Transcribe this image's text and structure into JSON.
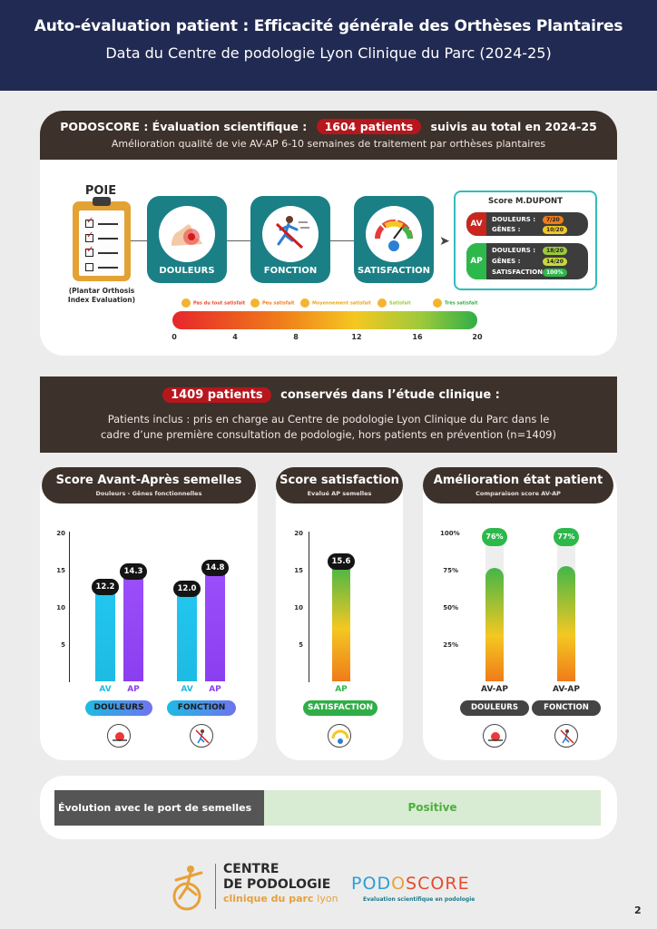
{
  "header": {
    "title": "Auto-évaluation patient : Efficacité générale des Orthèses Plantaires",
    "subtitle": "Data du Centre de podologie Lyon Clinique du Parc (2024-25)"
  },
  "section1": {
    "prefix": "PODOSCORE : Évaluation scientifique :",
    "patients_pill": "1604 patients",
    "suffix": "suivis au total en 2024-25",
    "line2": "Amélioration qualité de vie AV-AP 6-10 semaines de traitement par orthèses plantaires",
    "poie_title": "POIE",
    "poie_sub": "(Plantar Orthosis Index Evaluation)",
    "tiles": [
      "DOULEURS",
      "FONCTION",
      "SATISFACTION"
    ],
    "score_box": {
      "title": "Score M.DUPONT",
      "av": {
        "tag": "AV",
        "douleurs_label": "DOULEURS :",
        "douleurs_val": "7/20",
        "genes_label": "GÊNES :",
        "genes_val": "10/20"
      },
      "ap": {
        "tag": "AP",
        "douleurs_label": "DOULEURS :",
        "douleurs_val": "18/20",
        "genes_label": "GÊNES :",
        "genes_val": "14/20",
        "satisfaction_label": "SATISFACTION :",
        "satisfaction_val": "100%"
      }
    },
    "satisfaction_levels": [
      "Pas du tout satisfait",
      "Peu satisfait",
      "Moyennement satisfait",
      "Satisfait",
      "Très satisfait"
    ],
    "scale_ticks": [
      "0",
      "4",
      "8",
      "12",
      "16",
      "20"
    ],
    "colors": {
      "red": "#b8161d",
      "teal": "#1b7f86"
    }
  },
  "section2": {
    "patients_pill": "1409 patients",
    "suffix": "conservés dans l’étude clinique :",
    "line2": "Patients inclus : pris en charge au Centre de podologie Lyon Clinique du Parc dans le",
    "line3": "cadre d’une première consultation de podologie, hors patients en prévention (n=1409)"
  },
  "chart_data": [
    {
      "type": "bar",
      "title": "Score Avant-Après semelles",
      "subtitle": "Douleurs - Gênes fonctionnelles",
      "ylim": [
        0,
        20
      ],
      "yticks": [
        "20",
        "15",
        "10",
        "5"
      ],
      "categories": [
        "DOULEURS",
        "FONCTION"
      ],
      "bar_labels": [
        "AV",
        "AP"
      ],
      "series": [
        {
          "name": "AV",
          "values": [
            12.2,
            12.0
          ]
        },
        {
          "name": "AP",
          "values": [
            14.3,
            14.8
          ]
        }
      ],
      "value_labels": [
        "12.2",
        "14.3",
        "12.0",
        "14.8"
      ]
    },
    {
      "type": "bar",
      "title": "Score satisfaction",
      "subtitle": "Evalué AP semelles",
      "ylim": [
        0,
        20
      ],
      "yticks": [
        "20",
        "15",
        "10",
        "5"
      ],
      "categories": [
        "SATISFACTION"
      ],
      "bar_labels": [
        "AP"
      ],
      "values": [
        15.6
      ],
      "value_labels": [
        "15.6"
      ]
    },
    {
      "type": "bar",
      "title": "Amélioration état patient",
      "subtitle": "Comparaison score AV-AP",
      "ylim": [
        0,
        100
      ],
      "yticks": [
        "100%",
        "75%",
        "50%",
        "25%"
      ],
      "categories": [
        "DOULEURS",
        "FONCTION"
      ],
      "bar_labels": [
        "AV-AP",
        "AV-AP"
      ],
      "values": [
        76,
        77
      ],
      "value_labels": [
        "76%",
        "77%"
      ]
    }
  ],
  "evolution": {
    "label": "Évolution avec le port de semelles",
    "value": "Positive"
  },
  "footer": {
    "centre_line1": "CENTRE",
    "centre_line2": "DE PODOLOGIE",
    "centre_line3a": "clinique du parc",
    "centre_line3b": "lyon",
    "podoscore": "PODOSCORE",
    "podoscore_sub": "Evaluation scientifique en podologie",
    "page": "2"
  }
}
